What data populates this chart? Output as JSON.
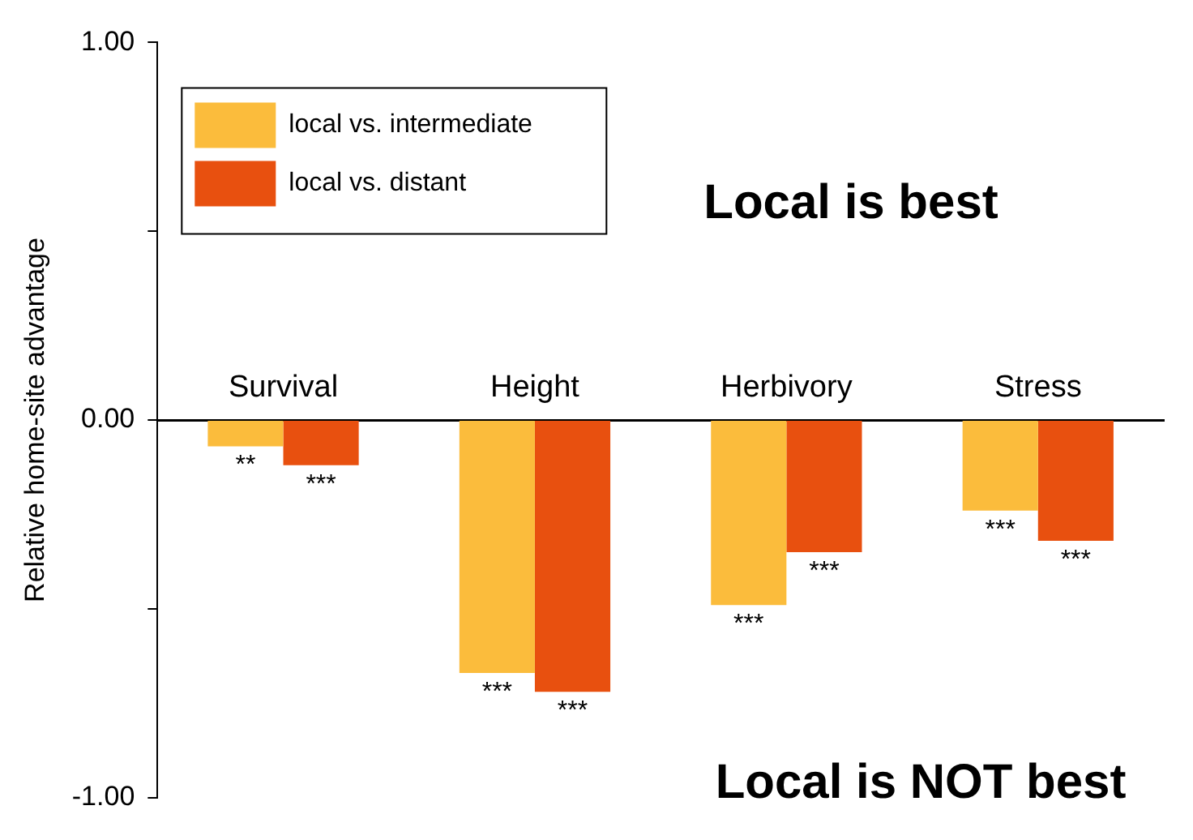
{
  "chart_data": {
    "type": "bar",
    "ylabel": "Relative home-site advantage",
    "categories": [
      "Survival",
      "Height",
      "Herbivory",
      "Stress"
    ],
    "series": [
      {
        "name": "local vs. intermediate",
        "color": "#fbbc3c",
        "values": [
          -0.07,
          -0.67,
          -0.49,
          -0.24
        ],
        "value_labels": [
          "**",
          "***",
          "***",
          "***"
        ]
      },
      {
        "name": "local vs. distant",
        "color": "#e8500f",
        "values": [
          -0.12,
          -0.72,
          -0.35,
          -0.32
        ],
        "value_labels": [
          "***",
          "***",
          "***",
          "***"
        ]
      }
    ],
    "ylim": [
      -1,
      1
    ],
    "yticks": [
      {
        "value": -1,
        "label": "-1.00"
      },
      {
        "value": -0.5,
        "label": null
      },
      {
        "value": 0,
        "label": "0.00"
      },
      {
        "value": 0.5,
        "label": null
      },
      {
        "value": 1,
        "label": "1.00"
      }
    ],
    "legend": "top left",
    "grid": false,
    "annotations": [
      "Local is best",
      "Local is NOT best"
    ]
  }
}
